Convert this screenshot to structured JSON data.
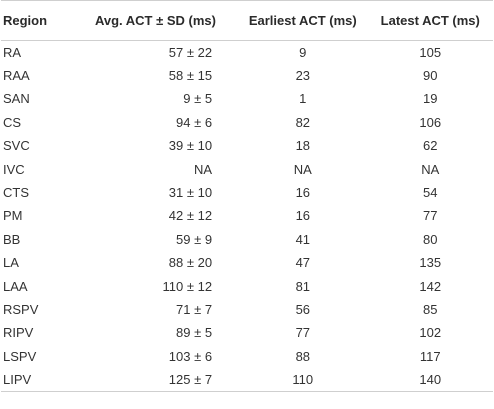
{
  "table": {
    "headers": {
      "region": "Region",
      "avg": "Avg. ACT ± SD (ms)",
      "earliest": "Earliest ACT (ms)",
      "latest": "Latest ACT (ms)"
    },
    "rows": [
      {
        "region": "RA",
        "avg": "57 ± 22",
        "earliest": "9",
        "latest": "105"
      },
      {
        "region": "RAA",
        "avg": "58 ± 15",
        "earliest": "23",
        "latest": "90"
      },
      {
        "region": "SAN",
        "avg": "9 ± 5",
        "earliest": "1",
        "latest": "19"
      },
      {
        "region": "CS",
        "avg": "94 ± 6",
        "earliest": "82",
        "latest": "106"
      },
      {
        "region": "SVC",
        "avg": "39 ± 10",
        "earliest": "18",
        "latest": "62"
      },
      {
        "region": "IVC",
        "avg": "NA",
        "earliest": "NA",
        "latest": "NA"
      },
      {
        "region": "CTS",
        "avg": "31 ± 10",
        "earliest": "16",
        "latest": "54"
      },
      {
        "region": "PM",
        "avg": "42 ± 12",
        "earliest": "16",
        "latest": "77"
      },
      {
        "region": "BB",
        "avg": "59 ± 9",
        "earliest": "41",
        "latest": "80"
      },
      {
        "region": "LA",
        "avg": "88 ± 20",
        "earliest": "47",
        "latest": "135"
      },
      {
        "region": "LAA",
        "avg": "110 ± 12",
        "earliest": "81",
        "latest": "142"
      },
      {
        "region": "RSPV",
        "avg": "71 ± 7",
        "earliest": "56",
        "latest": "85"
      },
      {
        "region": "RIPV",
        "avg": "89 ± 5",
        "earliest": "77",
        "latest": "102"
      },
      {
        "region": "LSPV",
        "avg": "103 ± 6",
        "earliest": "88",
        "latest": "117"
      },
      {
        "region": "LIPV",
        "avg": "125 ± 7",
        "earliest": "110",
        "latest": "140"
      }
    ]
  }
}
